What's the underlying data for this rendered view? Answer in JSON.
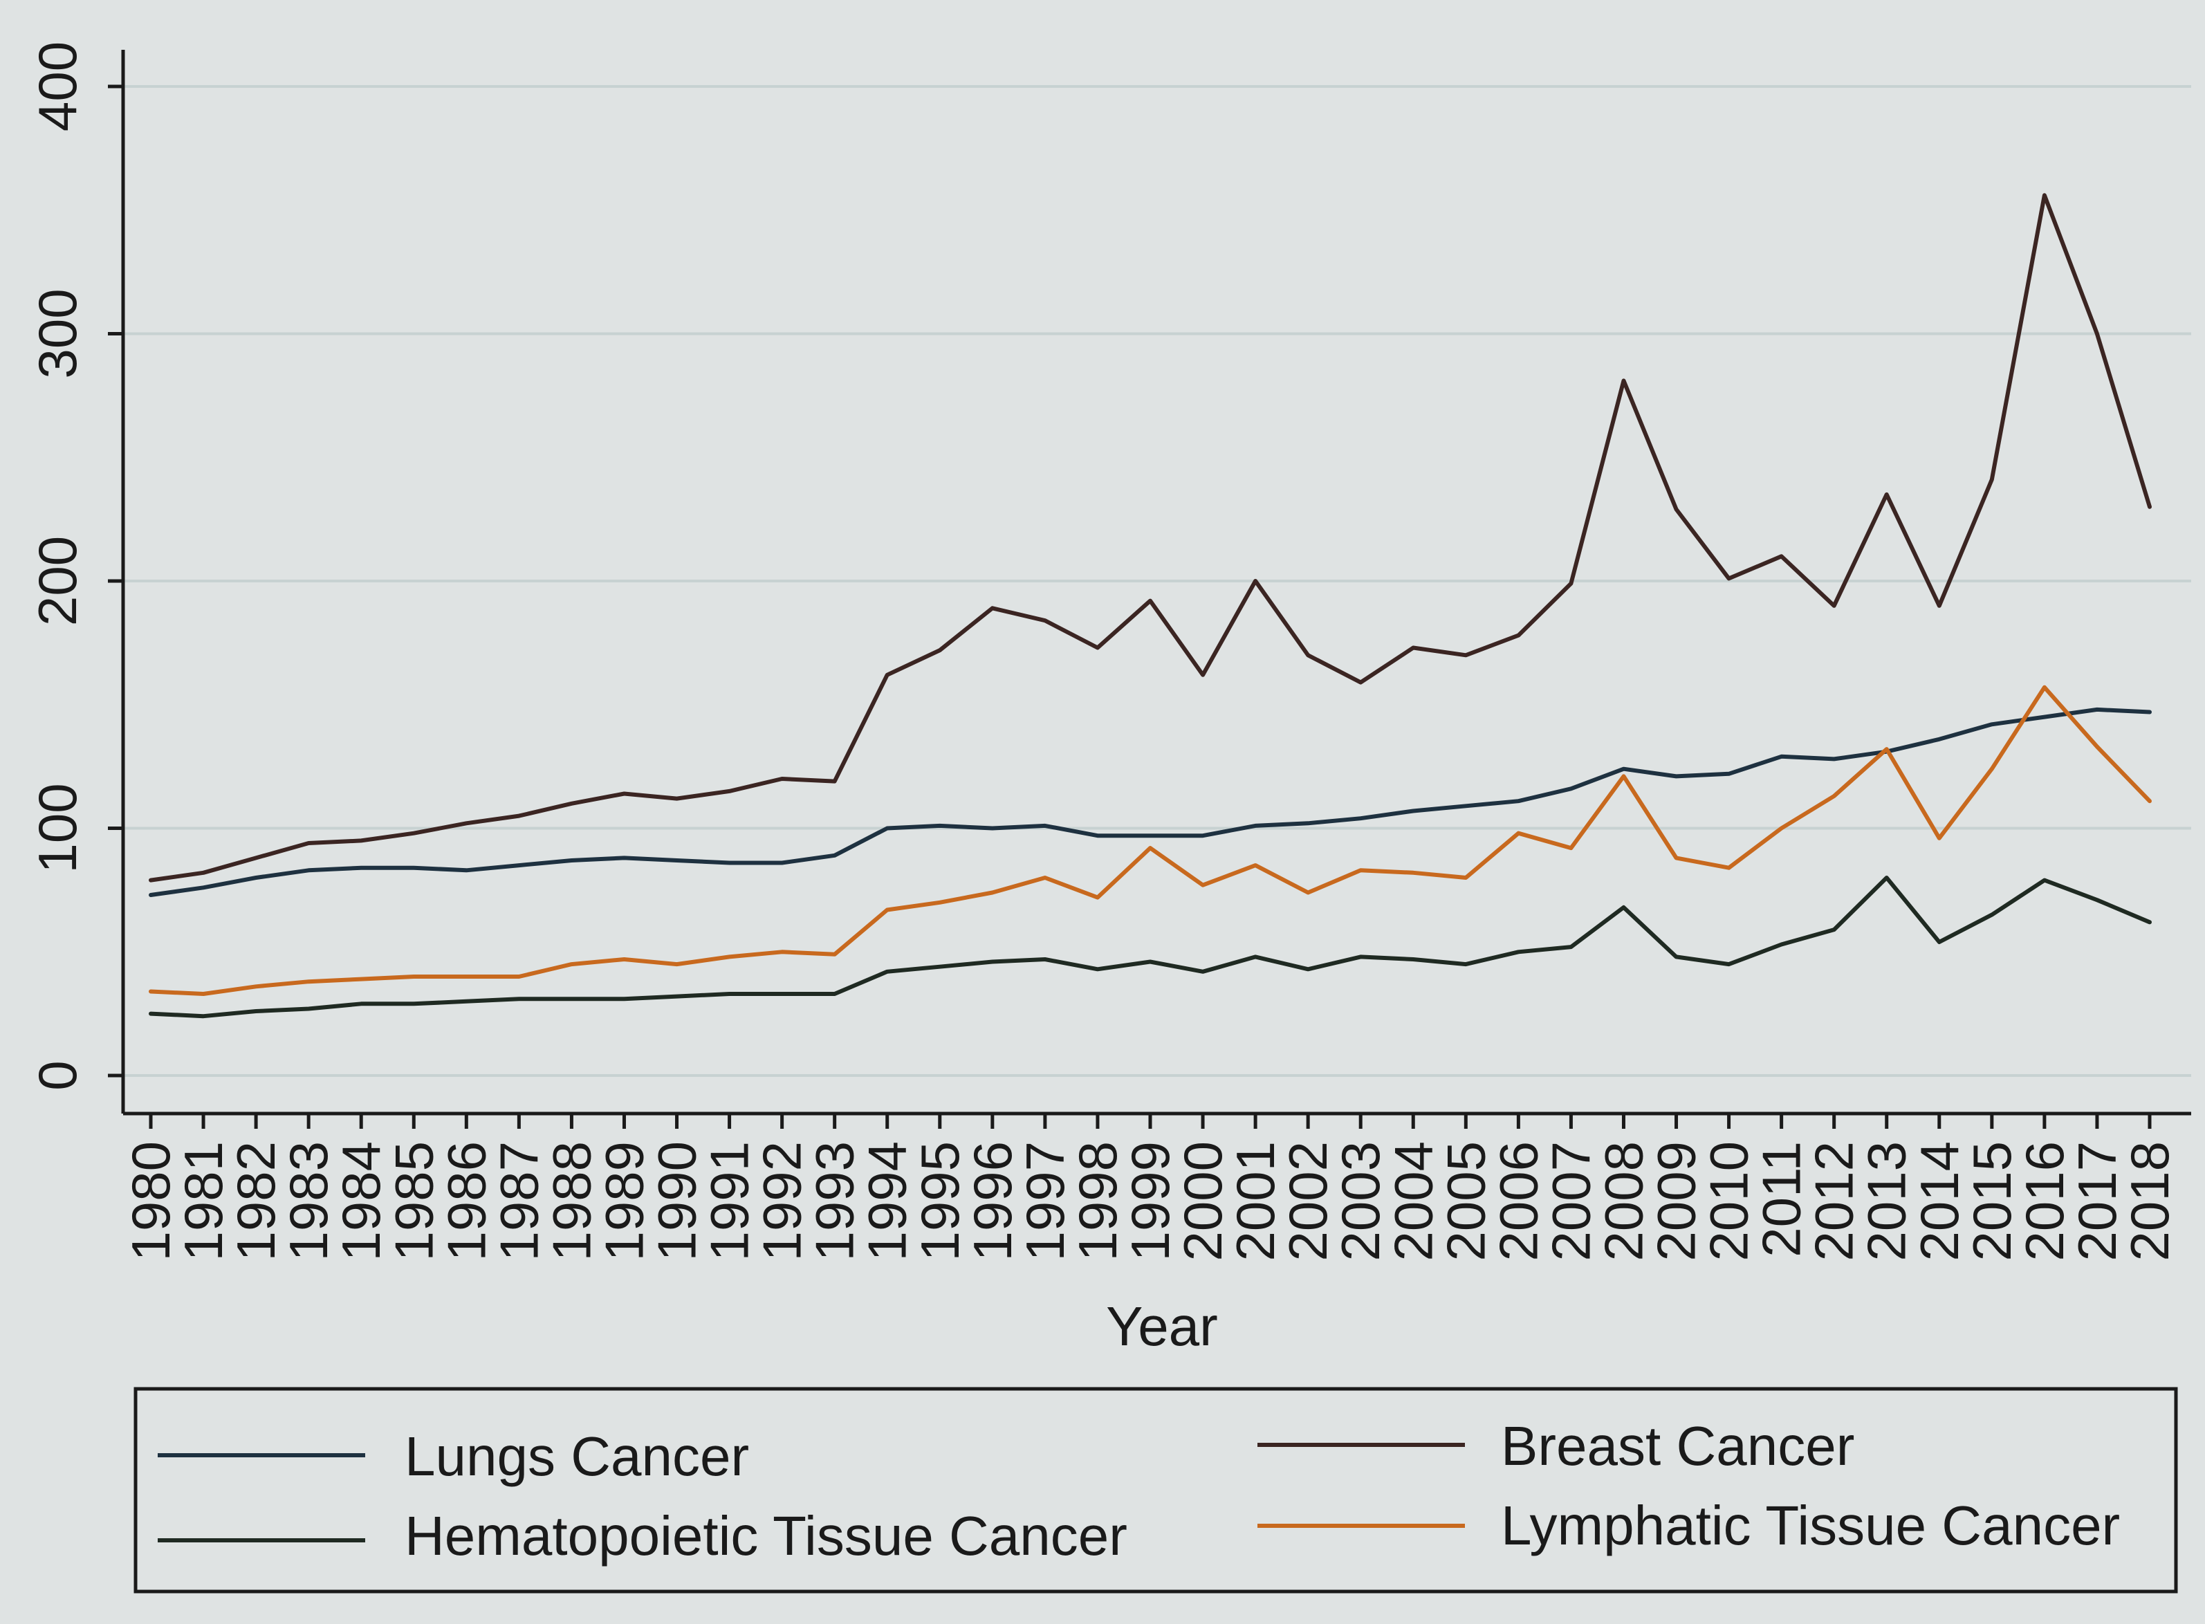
{
  "chart_data": {
    "type": "line",
    "title": "",
    "xlabel": "Year",
    "ylabel": "",
    "ylim": [
      0,
      400
    ],
    "yticks": [
      0,
      100,
      200,
      300,
      400
    ],
    "grid": true,
    "legend_position": "bottom",
    "x": [
      1980,
      1981,
      1982,
      1983,
      1984,
      1985,
      1986,
      1987,
      1988,
      1989,
      1990,
      1991,
      1992,
      1993,
      1994,
      1995,
      1996,
      1997,
      1998,
      1999,
      2000,
      2001,
      2002,
      2003,
      2004,
      2005,
      2006,
      2007,
      2008,
      2009,
      2010,
      2011,
      2012,
      2013,
      2014,
      2015,
      2016,
      2017,
      2018
    ],
    "series": [
      {
        "name": "Lungs Cancer",
        "color": "#1e3140",
        "values": [
          73,
          76,
          80,
          83,
          84,
          84,
          83,
          85,
          87,
          88,
          87,
          86,
          86,
          89,
          100,
          101,
          100,
          101,
          97,
          97,
          97,
          101,
          102,
          104,
          107,
          109,
          111,
          116,
          124,
          121,
          122,
          129,
          128,
          131,
          136,
          142,
          145,
          148,
          147
        ]
      },
      {
        "name": "Breast Cancer",
        "color": "#3b2522",
        "values": [
          79,
          82,
          88,
          94,
          95,
          98,
          102,
          105,
          110,
          114,
          112,
          115,
          120,
          119,
          162,
          172,
          189,
          184,
          173,
          192,
          162,
          200,
          170,
          159,
          173,
          170,
          178,
          199,
          281,
          229,
          201,
          210,
          190,
          235,
          190,
          241,
          356,
          300,
          230
        ]
      },
      {
        "name": "Hematopoietic Tissue Cancer",
        "color": "#1f2a22",
        "values": [
          25,
          24,
          26,
          27,
          29,
          29,
          30,
          31,
          31,
          31,
          32,
          33,
          33,
          33,
          42,
          44,
          46,
          47,
          43,
          46,
          42,
          48,
          43,
          48,
          47,
          45,
          50,
          52,
          68,
          48,
          45,
          53,
          59,
          80,
          54,
          65,
          79,
          71,
          62
        ]
      },
      {
        "name": "Lymphatic Tissue Cancer",
        "color": "#c8691e",
        "values": [
          34,
          33,
          36,
          38,
          39,
          40,
          40,
          40,
          45,
          47,
          45,
          48,
          50,
          49,
          67,
          70,
          74,
          80,
          72,
          92,
          77,
          85,
          74,
          83,
          82,
          80,
          98,
          92,
          121,
          88,
          84,
          100,
          113,
          132,
          96,
          124,
          157,
          133,
          111
        ]
      }
    ],
    "legend": {
      "items": [
        "Lungs Cancer",
        "Breast Cancer",
        "Hematopoietic Tissue Cancer",
        "Lymphatic Tissue Cancer"
      ]
    }
  }
}
